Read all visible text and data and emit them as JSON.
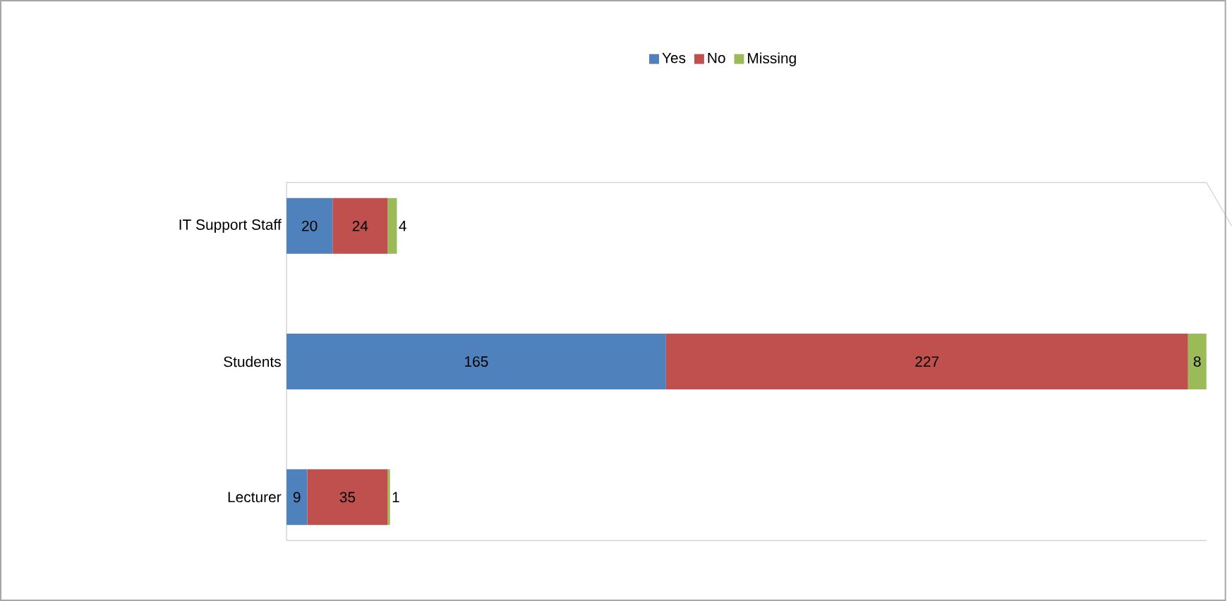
{
  "chart_data": {
    "type": "bar",
    "orientation": "horizontal",
    "stacked": true,
    "categories": [
      "IT Support Staff",
      "Students",
      "Lecturer"
    ],
    "series": [
      {
        "name": "Yes",
        "color": "#4f81bd",
        "values": [
          20,
          165,
          9
        ]
      },
      {
        "name": "No",
        "color": "#c0504d",
        "values": [
          24,
          227,
          35
        ]
      },
      {
        "name": "Missing",
        "color": "#9bbb59",
        "values": [
          4,
          8,
          1
        ]
      }
    ],
    "xlim": [
      0,
      400
    ],
    "data_labels": true,
    "legend": "top",
    "tick_labels": "y"
  }
}
